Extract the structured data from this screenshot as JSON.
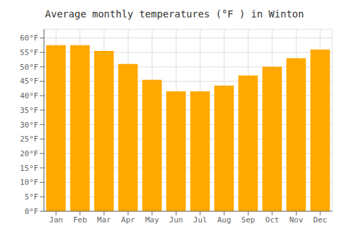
{
  "chart_data": {
    "type": "bar",
    "title": "Average monthly temperatures (°F ) in Winton",
    "categories": [
      "Jan",
      "Feb",
      "Mar",
      "Apr",
      "May",
      "Jun",
      "Jul",
      "Aug",
      "Sep",
      "Oct",
      "Nov",
      "Dec"
    ],
    "values": [
      57.5,
      57.5,
      55.5,
      51.0,
      45.5,
      41.5,
      41.5,
      43.5,
      47.0,
      50.0,
      53.0,
      56.0
    ],
    "color": "#FFA800",
    "ylim": [
      0,
      63
    ],
    "yticks": [
      {
        "value": 0,
        "label": "0°F"
      },
      {
        "value": 5,
        "label": "5°F"
      },
      {
        "value": 10,
        "label": "10°F"
      },
      {
        "value": 15,
        "label": "15°F"
      },
      {
        "value": 20,
        "label": "20°F"
      },
      {
        "value": 25,
        "label": "25°F"
      },
      {
        "value": 30,
        "label": "30°F"
      },
      {
        "value": 35,
        "label": "35°F"
      },
      {
        "value": 40,
        "label": "40°F"
      },
      {
        "value": 45,
        "label": "45°F"
      },
      {
        "value": 50,
        "label": "50°F"
      },
      {
        "value": 55,
        "label": "55°F"
      },
      {
        "value": 60,
        "label": "60°F"
      }
    ],
    "grid": true
  }
}
